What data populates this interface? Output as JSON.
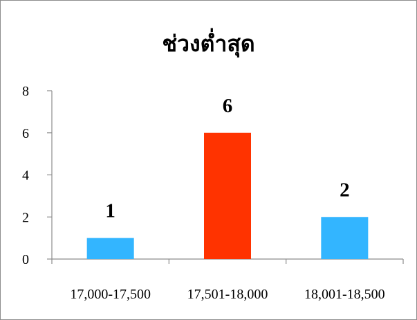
{
  "chart_data": {
    "type": "bar",
    "title": "ช่วงต่ำสุด",
    "xlabel": "",
    "ylabel": "",
    "categories": [
      "17,000-17,500",
      "17,501-18,000",
      "18,001-18,500"
    ],
    "values": [
      1,
      6,
      2
    ],
    "ylim": [
      0,
      8
    ],
    "yticks": [
      0,
      2,
      4,
      6,
      8
    ],
    "bar_colors": [
      "#33B5FF",
      "#FF3300",
      "#33B5FF"
    ],
    "data_labels": [
      "1",
      "6",
      "2"
    ],
    "grid": false,
    "legend": "none"
  }
}
